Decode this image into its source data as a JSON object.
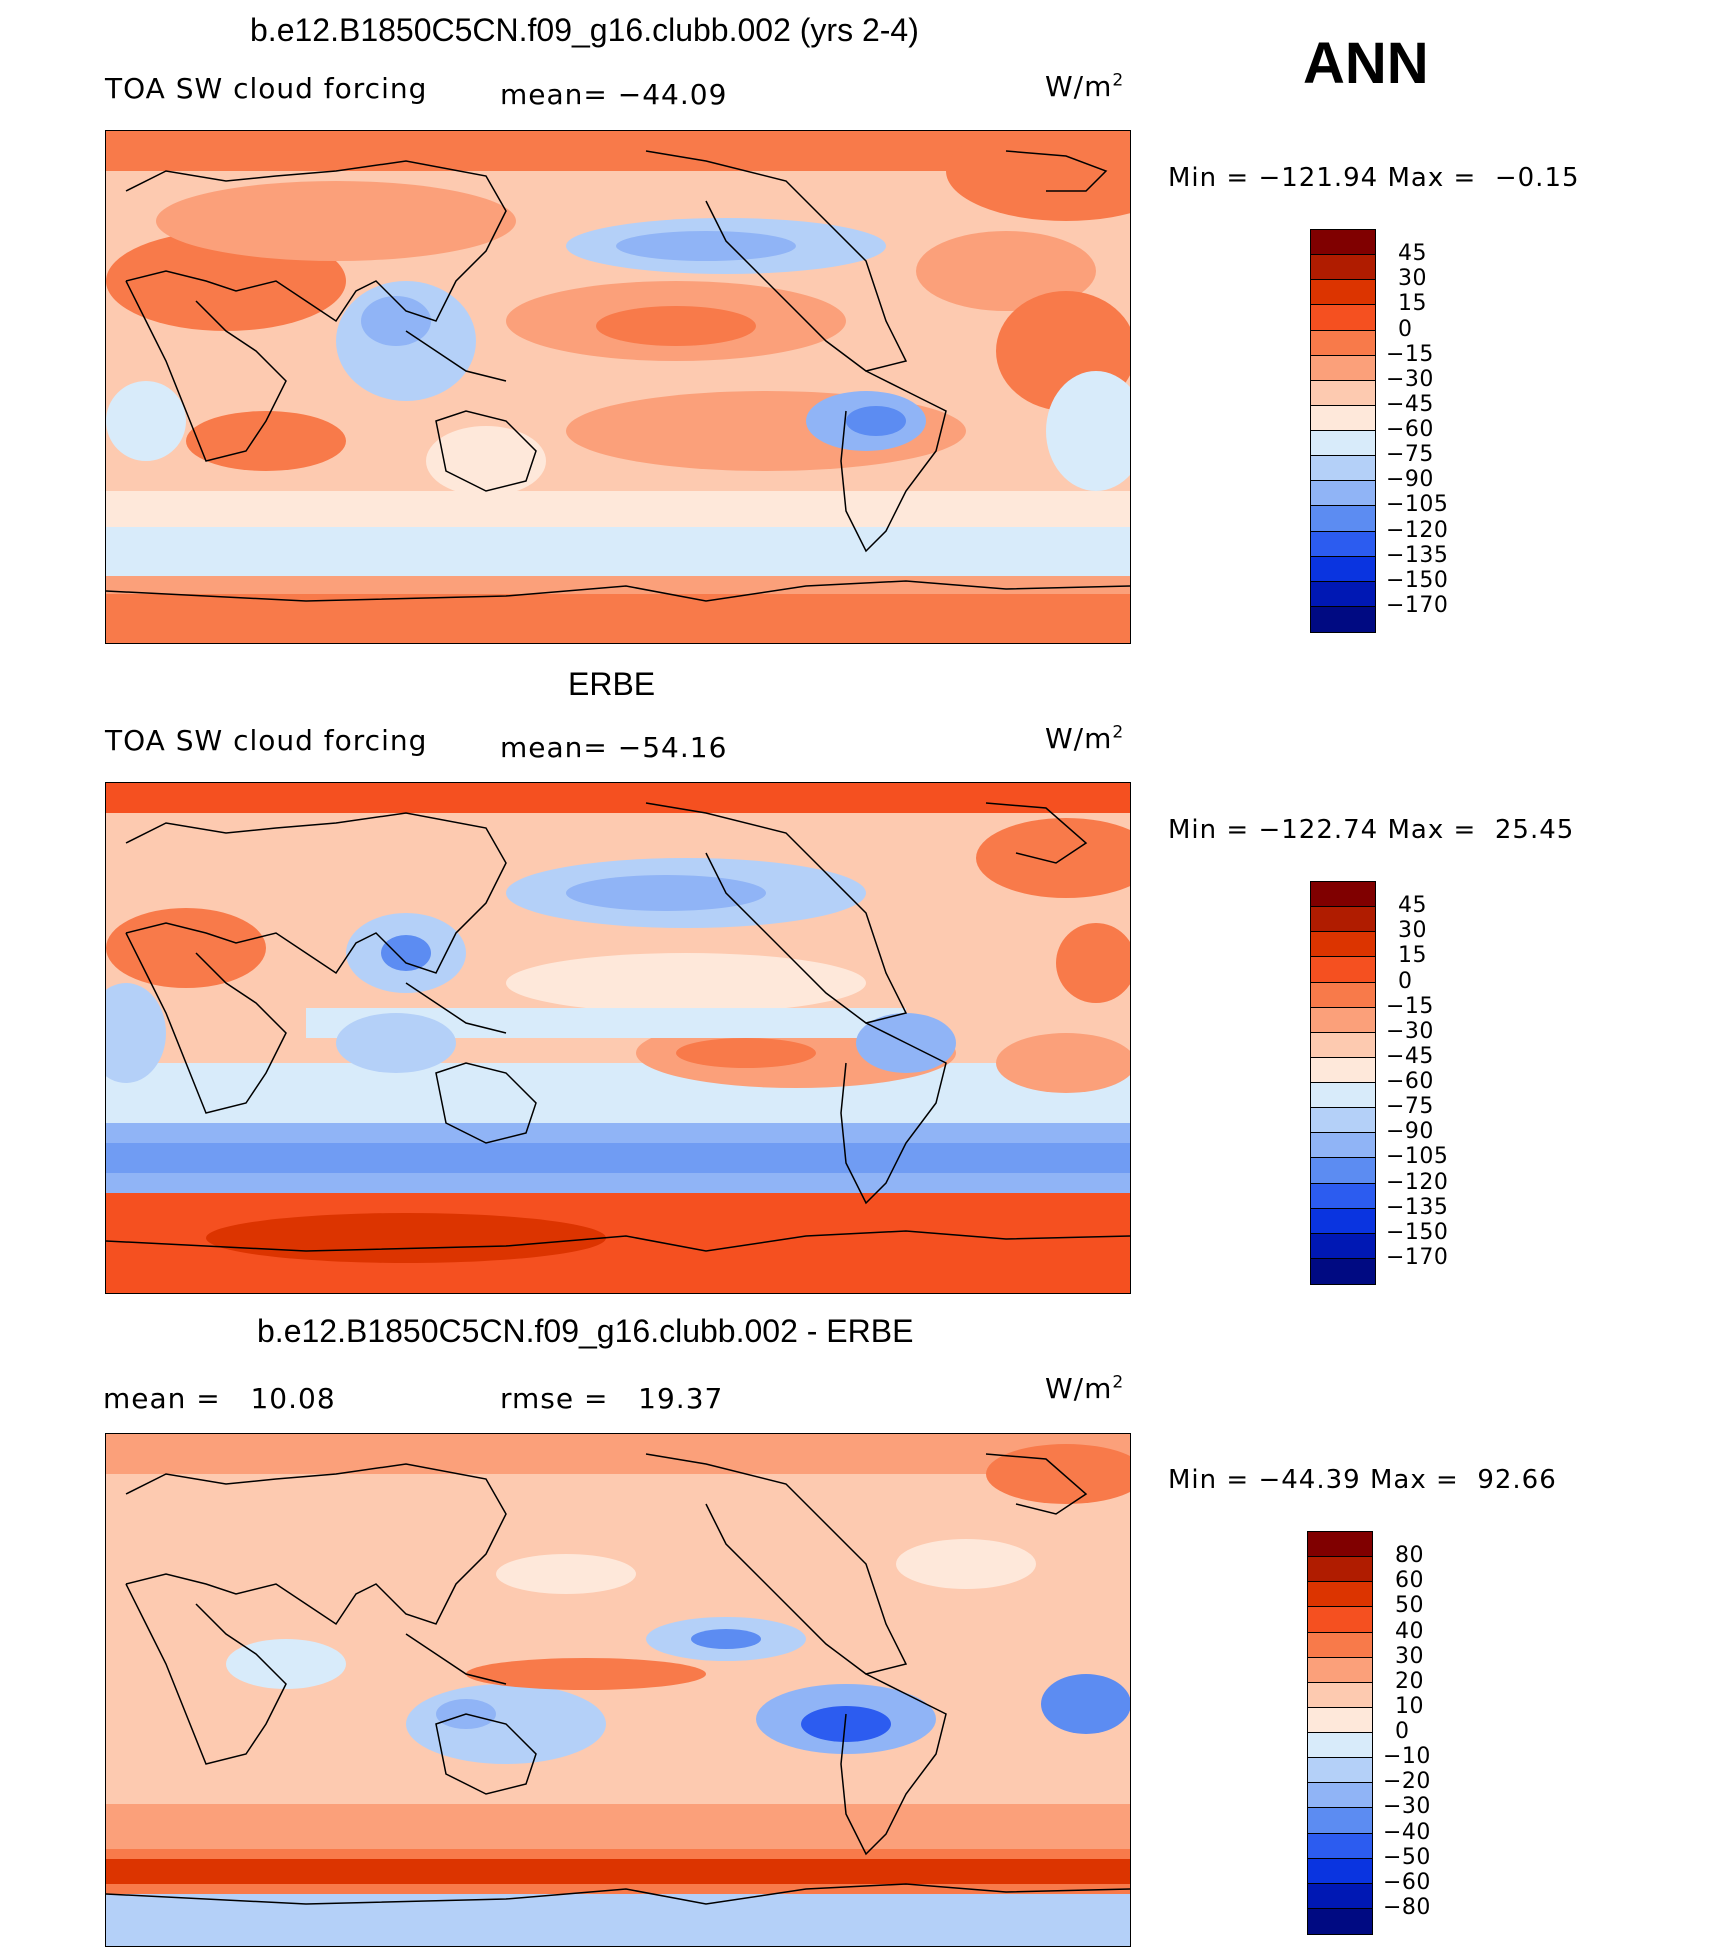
{
  "season": "ANN",
  "units_base": "W/m",
  "units_exp": "2",
  "colors": {
    "model_scale": [
      "#800000",
      "#b01c00",
      "#dc3400",
      "#f55020",
      "#f87a4a",
      "#fba07a",
      "#fdcab0",
      "#fee8da",
      "#d8ebfa",
      "#b4d0f8",
      "#90b4f6",
      "#5c8cf2",
      "#2c5cf0",
      "#0a34e0",
      "#0018b4",
      "#000a82"
    ],
    "diff_scale": [
      "#800000",
      "#b01c00",
      "#dc3400",
      "#f55020",
      "#f87a4a",
      "#fba07a",
      "#fdcab0",
      "#fee8da",
      "#d8ebfa",
      "#b4d0f8",
      "#90b4f6",
      "#5c8cf2",
      "#2c5cf0",
      "#0a34e0",
      "#0018b4",
      "#000a82"
    ]
  },
  "panels": [
    {
      "title": "b.e12.B1850C5CN.f09_g16.clubb.002 (yrs 2-4)",
      "left_text": "TOA SW cloud forcing",
      "mean_text": "mean= −44.09",
      "min_label": "Min",
      "min_value": "−121.94",
      "max_label": "Max",
      "max_value": "−0.15",
      "levels": [
        "45",
        "30",
        "15",
        "0",
        "−15",
        "−30",
        "−45",
        "−60",
        "−75",
        "−90",
        "−105",
        "−120",
        "−135",
        "−150",
        "−170"
      ]
    },
    {
      "title": "ERBE",
      "left_text": "TOA SW cloud forcing",
      "mean_text": "mean= −54.16",
      "min_label": "Min",
      "min_value": "−122.74",
      "max_label": "Max",
      "max_value": "25.45",
      "levels": [
        "45",
        "30",
        "15",
        "0",
        "−15",
        "−30",
        "−45",
        "−60",
        "−75",
        "−90",
        "−105",
        "−120",
        "−135",
        "−150",
        "−170"
      ]
    },
    {
      "title": "b.e12.B1850C5CN.f09_g16.clubb.002 - ERBE",
      "left_text": "mean =   10.08",
      "mean_text": "rmse =   19.37",
      "min_label": "Min",
      "min_value": "−44.39",
      "max_label": "Max",
      "max_value": "92.66",
      "levels": [
        "80",
        "60",
        "50",
        "40",
        "30",
        "20",
        "10",
        "0",
        "−10",
        "−20",
        "−30",
        "−40",
        "−50",
        "−60",
        "−80"
      ]
    }
  ],
  "chart_data": [
    {
      "type": "heatmap",
      "title": "b.e12.B1850C5CN.f09_g16.clubb.002 (yrs 2-4)",
      "variable": "TOA SW cloud forcing",
      "season": "ANN",
      "mean": -44.09,
      "min": -121.94,
      "max": -0.15,
      "units": "W/m2",
      "contour_levels": [
        45,
        30,
        15,
        0,
        -15,
        -30,
        -45,
        -60,
        -75,
        -90,
        -105,
        -120,
        -135,
        -150,
        -170
      ]
    },
    {
      "type": "heatmap",
      "title": "ERBE",
      "variable": "TOA SW cloud forcing",
      "season": "ANN",
      "mean": -54.16,
      "min": -122.74,
      "max": 25.45,
      "units": "W/m2",
      "contour_levels": [
        45,
        30,
        15,
        0,
        -15,
        -30,
        -45,
        -60,
        -75,
        -90,
        -105,
        -120,
        -135,
        -150,
        -170
      ]
    },
    {
      "type": "heatmap",
      "title": "b.e12.B1850C5CN.f09_g16.clubb.002 - ERBE",
      "season": "ANN",
      "mean": 10.08,
      "rmse": 19.37,
      "min": -44.39,
      "max": 92.66,
      "units": "W/m2",
      "contour_levels": [
        80,
        60,
        50,
        40,
        30,
        20,
        10,
        0,
        -10,
        -20,
        -30,
        -40,
        -50,
        -60,
        -80
      ]
    }
  ]
}
